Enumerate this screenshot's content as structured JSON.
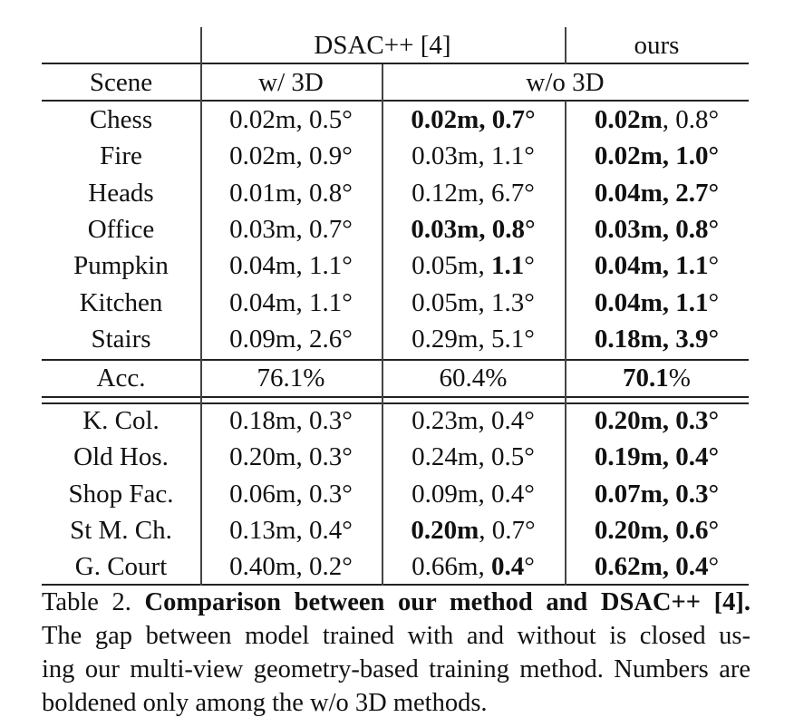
{
  "table": {
    "header_top": {
      "group1": "DSAC++ [4]",
      "group2": "ours"
    },
    "header_sub": {
      "scene": "Scene",
      "w3d": "w/ 3D",
      "wo3d": "w/o 3D"
    },
    "indoor_rows": [
      {
        "scene": "Chess",
        "w3d": [
          [
            "0.02m, 0.5°",
            false
          ]
        ],
        "dsac_wo3d": [
          [
            "0.02m, 0.7°",
            true
          ]
        ],
        "ours": [
          [
            "0.02m",
            true
          ],
          [
            ", 0.8°",
            false
          ]
        ]
      },
      {
        "scene": "Fire",
        "w3d": [
          [
            "0.02m, 0.9°",
            false
          ]
        ],
        "dsac_wo3d": [
          [
            "0.03m, 1.1°",
            false
          ]
        ],
        "ours": [
          [
            "0.02m, 1.0°",
            true
          ]
        ]
      },
      {
        "scene": "Heads",
        "w3d": [
          [
            "0.01m, 0.8°",
            false
          ]
        ],
        "dsac_wo3d": [
          [
            "0.12m, 6.7°",
            false
          ]
        ],
        "ours": [
          [
            "0.04m, 2.7°",
            true
          ]
        ]
      },
      {
        "scene": "Office",
        "w3d": [
          [
            "0.03m, 0.7°",
            false
          ]
        ],
        "dsac_wo3d": [
          [
            "0.03m, 0.8°",
            true
          ]
        ],
        "ours": [
          [
            "0.03m, 0.8°",
            true
          ]
        ]
      },
      {
        "scene": "Pumpkin",
        "w3d": [
          [
            "0.04m, 1.1°",
            false
          ]
        ],
        "dsac_wo3d": [
          [
            "0.05m, ",
            false
          ],
          [
            "1.1",
            true
          ],
          [
            "°",
            false
          ]
        ],
        "ours": [
          [
            "0.04m, 1.1",
            true
          ],
          [
            "°",
            false
          ]
        ]
      },
      {
        "scene": "Kitchen",
        "w3d": [
          [
            "0.04m, 1.1°",
            false
          ]
        ],
        "dsac_wo3d": [
          [
            "0.05m, 1.3°",
            false
          ]
        ],
        "ours": [
          [
            "0.04m, 1.1",
            true
          ],
          [
            "°",
            false
          ]
        ]
      },
      {
        "scene": "Stairs",
        "w3d": [
          [
            "0.09m, 2.6°",
            false
          ]
        ],
        "dsac_wo3d": [
          [
            "0.29m, 5.1°",
            false
          ]
        ],
        "ours": [
          [
            "0.18m, 3.9°",
            true
          ]
        ]
      }
    ],
    "acc_row": {
      "label": "Acc.",
      "w3d": "76.1%",
      "dsac_wo3d": "60.4%",
      "ours_num": "70.1",
      "ours_pct": "%"
    },
    "outdoor_rows": [
      {
        "scene": "K. Col.",
        "w3d": [
          [
            "0.18m, 0.3°",
            false
          ]
        ],
        "dsac_wo3d": [
          [
            "0.23m, 0.4°",
            false
          ]
        ],
        "ours": [
          [
            "0.20m, 0.3°",
            true
          ]
        ]
      },
      {
        "scene": "Old Hos.",
        "w3d": [
          [
            "0.20m, 0.3°",
            false
          ]
        ],
        "dsac_wo3d": [
          [
            "0.24m, 0.5°",
            false
          ]
        ],
        "ours": [
          [
            "0.19m, 0.4°",
            true
          ]
        ]
      },
      {
        "scene": "Shop Fac.",
        "w3d": [
          [
            "0.06m, 0.3°",
            false
          ]
        ],
        "dsac_wo3d": [
          [
            "0.09m, 0.4°",
            false
          ]
        ],
        "ours": [
          [
            "0.07m, 0.3°",
            true
          ]
        ]
      },
      {
        "scene": "St M. Ch.",
        "w3d": [
          [
            "0.13m, 0.4°",
            false
          ]
        ],
        "dsac_wo3d": [
          [
            "0.20m",
            true
          ],
          [
            ", 0.7°",
            false
          ]
        ],
        "ours": [
          [
            "0.20m, 0.6°",
            true
          ]
        ]
      },
      {
        "scene": "G. Court",
        "w3d": [
          [
            "0.40m, 0.2°",
            false
          ]
        ],
        "dsac_wo3d": [
          [
            "0.66m, ",
            false
          ],
          [
            "0.4",
            true
          ],
          [
            "°",
            false
          ]
        ],
        "ours": [
          [
            "0.62m, 0.4",
            true
          ],
          [
            "°",
            false
          ]
        ]
      }
    ]
  },
  "caption": {
    "label": "Table 2.",
    "title": "Comparison between our method and DSAC++ [4].",
    "lines": [
      "The gap between model trained with and without is closed us-",
      "ing our multi-view geometry-based training method. Numbers are",
      "boldened only among the w/o 3D methods."
    ]
  }
}
